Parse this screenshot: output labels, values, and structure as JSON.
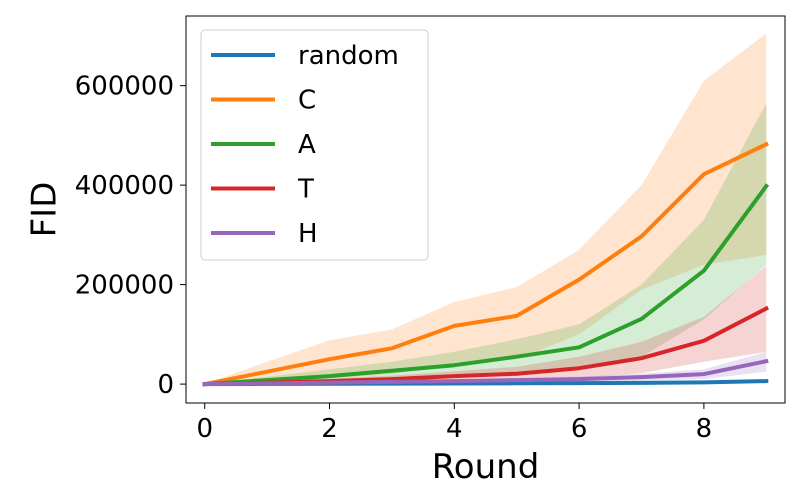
{
  "chart_data": {
    "type": "line",
    "xlabel": "Round",
    "ylabel": "FID",
    "xlim": [
      -0.3,
      9.3
    ],
    "ylim": [
      -38000,
      740000
    ],
    "xticks": [
      0,
      2,
      4,
      6,
      8
    ],
    "yticks": [
      0,
      200000,
      400000,
      600000
    ],
    "xtick_labels": [
      "0",
      "2",
      "4",
      "6",
      "8"
    ],
    "ytick_labels": [
      "0",
      "200000",
      "400000",
      "600000"
    ],
    "legend_position": "top-left",
    "grid": false,
    "x": [
      0,
      1,
      2,
      3,
      4,
      5,
      6,
      7,
      8,
      9
    ],
    "series": [
      {
        "name": "random",
        "color": "#1f77b4",
        "values": [
          0,
          300,
          600,
          900,
          1200,
          1600,
          2000,
          2500,
          3500,
          6000
        ],
        "lower": [
          0,
          0,
          0,
          200,
          400,
          600,
          800,
          1000,
          1600,
          3000
        ],
        "upper": [
          0,
          600,
          1200,
          1800,
          2400,
          3000,
          3600,
          4200,
          6000,
          9000
        ]
      },
      {
        "name": "C",
        "color": "#ff7f0e",
        "values": [
          0,
          25000,
          50000,
          72000,
          117000,
          137000,
          210000,
          297000,
          422000,
          482000
        ],
        "lower": [
          0,
          5000,
          12000,
          20000,
          40000,
          50000,
          100000,
          190000,
          240000,
          260000
        ],
        "upper": [
          0,
          45000,
          88000,
          110000,
          165000,
          195000,
          270000,
          400000,
          610000,
          705000
        ]
      },
      {
        "name": "A",
        "color": "#2ca02c",
        "values": [
          0,
          8000,
          16000,
          27000,
          38000,
          55000,
          74000,
          131000,
          228000,
          398000
        ],
        "lower": [
          0,
          2000,
          5000,
          8000,
          15000,
          20000,
          30000,
          55000,
          130000,
          240000
        ],
        "upper": [
          0,
          15000,
          30000,
          45000,
          65000,
          90000,
          120000,
          200000,
          330000,
          565000
        ]
      },
      {
        "name": "T",
        "color": "#d62728",
        "values": [
          0,
          3000,
          6000,
          10000,
          16000,
          21000,
          32000,
          52000,
          87000,
          152000
        ],
        "lower": [
          0,
          1000,
          2000,
          4000,
          6000,
          8000,
          12000,
          22000,
          45000,
          65000
        ],
        "upper": [
          0,
          6000,
          11000,
          17000,
          26000,
          35000,
          55000,
          85000,
          135000,
          238000
        ]
      },
      {
        "name": "H",
        "color": "#9467bd",
        "values": [
          0,
          1500,
          3000,
          4500,
          6000,
          8000,
          10000,
          14000,
          20000,
          46000
        ],
        "lower": [
          0,
          500,
          1000,
          2000,
          3000,
          4000,
          5000,
          7000,
          10000,
          25000
        ],
        "upper": [
          0,
          2500,
          5000,
          7000,
          9500,
          12000,
          15000,
          21000,
          30000,
          65000
        ]
      }
    ]
  }
}
